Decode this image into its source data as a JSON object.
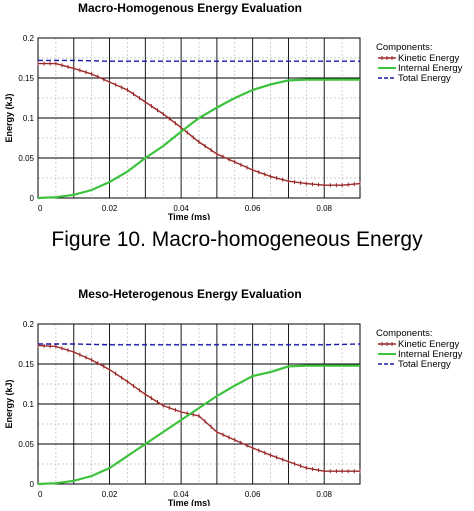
{
  "caption": "Figure 10. Macro-homogeneous Energy",
  "chart_data": [
    {
      "type": "line",
      "title": "Macro-Homogenous Energy Evaluation",
      "xlabel": "Time (ms)",
      "ylabel": "Energy (kJ)",
      "xlim": [
        0,
        0.09
      ],
      "ylim": [
        0,
        0.2
      ],
      "xticks": [
        0,
        0.02,
        0.04,
        0.06,
        0.08
      ],
      "xtick_labels": [
        "0",
        "0.02",
        "0.04",
        "0.06",
        "0.08"
      ],
      "yticks": [
        0,
        0.05,
        0.1,
        0.15,
        0.2
      ],
      "ytick_labels": [
        "0",
        "0.05",
        "0.1",
        "0.15",
        "0.2"
      ],
      "grid": true,
      "legend_title": "Components:",
      "legend_position": "right",
      "series": [
        {
          "name": "Kinetic Energy",
          "color": "#9b2a2a",
          "style": "dotted-markers",
          "x": [
            0,
            0.005,
            0.01,
            0.015,
            0.02,
            0.025,
            0.03,
            0.035,
            0.04,
            0.045,
            0.05,
            0.055,
            0.06,
            0.065,
            0.07,
            0.075,
            0.08,
            0.085,
            0.09
          ],
          "y": [
            0.168,
            0.168,
            0.162,
            0.155,
            0.145,
            0.135,
            0.12,
            0.105,
            0.088,
            0.07,
            0.055,
            0.045,
            0.035,
            0.027,
            0.021,
            0.018,
            0.016,
            0.016,
            0.018
          ]
        },
        {
          "name": "Internal Energy",
          "color": "#3cc23c",
          "style": "solid",
          "x": [
            0,
            0.005,
            0.01,
            0.015,
            0.02,
            0.025,
            0.03,
            0.035,
            0.04,
            0.045,
            0.05,
            0.055,
            0.06,
            0.065,
            0.07,
            0.075,
            0.08,
            0.085,
            0.09
          ],
          "y": [
            0,
            0.001,
            0.004,
            0.01,
            0.02,
            0.033,
            0.05,
            0.065,
            0.083,
            0.1,
            0.113,
            0.125,
            0.135,
            0.142,
            0.147,
            0.148,
            0.148,
            0.148,
            0.148
          ]
        },
        {
          "name": "Total Energy",
          "color": "#1a1aa8",
          "style": "dashed",
          "x": [
            0,
            0.01,
            0.02,
            0.03,
            0.04,
            0.05,
            0.06,
            0.07,
            0.08,
            0.09
          ],
          "y": [
            0.172,
            0.172,
            0.171,
            0.171,
            0.171,
            0.171,
            0.171,
            0.171,
            0.171,
            0.171
          ]
        }
      ]
    },
    {
      "type": "line",
      "title": "Meso-Heterogenous Energy Evaluation",
      "xlabel": "Time (ms)",
      "ylabel": "Energy (kJ)",
      "xlim": [
        0,
        0.09
      ],
      "ylim": [
        0,
        0.2
      ],
      "xticks": [
        0,
        0.02,
        0.04,
        0.06,
        0.08
      ],
      "xtick_labels": [
        "0",
        "0.02",
        "0.04",
        "0.06",
        "0.08"
      ],
      "yticks": [
        0,
        0.05,
        0.1,
        0.15,
        0.2
      ],
      "ytick_labels": [
        "0",
        "0.05",
        "0.1",
        "0.15",
        "0.2"
      ],
      "grid": true,
      "legend_title": "Components:",
      "legend_position": "right",
      "series": [
        {
          "name": "Kinetic Energy",
          "color": "#9b2a2a",
          "style": "dotted-markers",
          "x": [
            0,
            0.005,
            0.01,
            0.015,
            0.02,
            0.025,
            0.03,
            0.035,
            0.04,
            0.045,
            0.05,
            0.055,
            0.06,
            0.065,
            0.07,
            0.075,
            0.08,
            0.085,
            0.09
          ],
          "y": [
            0.173,
            0.172,
            0.165,
            0.155,
            0.143,
            0.128,
            0.112,
            0.098,
            0.09,
            0.085,
            0.065,
            0.055,
            0.045,
            0.036,
            0.028,
            0.02,
            0.016,
            0.016,
            0.016
          ]
        },
        {
          "name": "Internal Energy",
          "color": "#3cc23c",
          "style": "solid",
          "x": [
            0,
            0.005,
            0.01,
            0.015,
            0.02,
            0.025,
            0.03,
            0.035,
            0.04,
            0.045,
            0.05,
            0.055,
            0.06,
            0.065,
            0.07,
            0.075,
            0.08,
            0.085,
            0.09
          ],
          "y": [
            0,
            0.001,
            0.004,
            0.01,
            0.02,
            0.035,
            0.05,
            0.065,
            0.08,
            0.095,
            0.11,
            0.123,
            0.135,
            0.14,
            0.147,
            0.148,
            0.148,
            0.148,
            0.148
          ]
        },
        {
          "name": "Total Energy",
          "color": "#1a1aa8",
          "style": "dashed",
          "x": [
            0,
            0.01,
            0.02,
            0.03,
            0.04,
            0.05,
            0.06,
            0.07,
            0.08,
            0.09
          ],
          "y": [
            0.175,
            0.175,
            0.174,
            0.174,
            0.174,
            0.174,
            0.174,
            0.174,
            0.174,
            0.175
          ]
        }
      ]
    }
  ]
}
